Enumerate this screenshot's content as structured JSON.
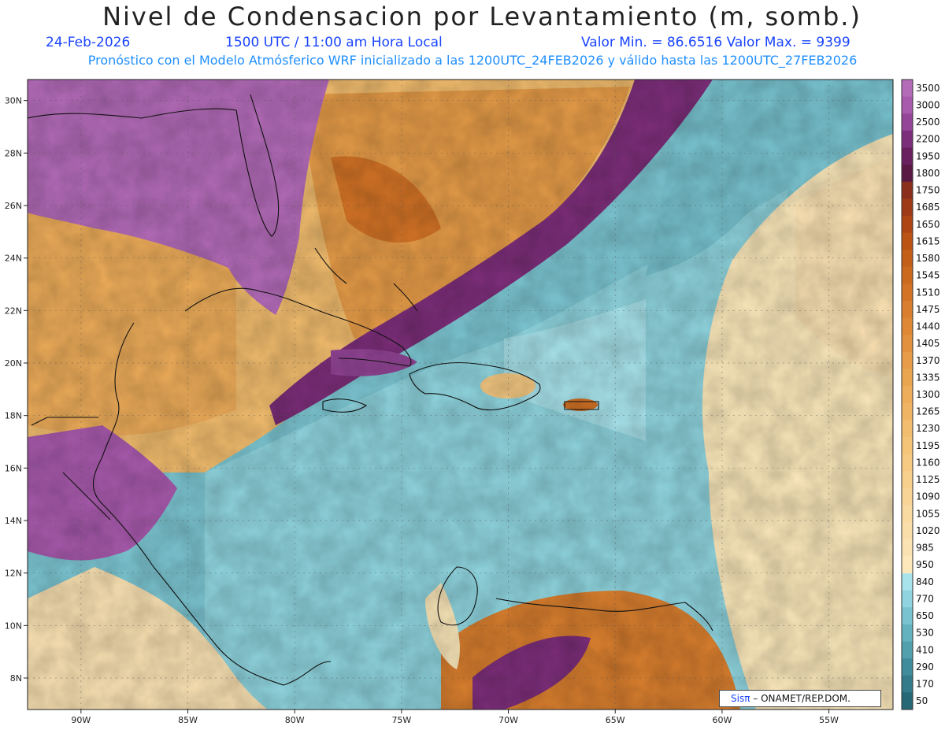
{
  "header": {
    "title": "Nivel de Condensacion por Levantamiento (m, somb.)",
    "date": "24-Feb-2026",
    "time": "1500 UTC / 11:00 am Hora Local",
    "minmax": "Valor Min. = 86.6516  Valor Max. = 9399",
    "subtitle": "Pronóstico con el Modelo Atmósferico WRF inicializado a las 1200UTC_24FEB2026 y válido hasta las  1200UTC_27FEB2026"
  },
  "map": {
    "lon_range": [
      -92.5,
      -52.0
    ],
    "lat_range": [
      6.8,
      30.8
    ],
    "lon_ticks": [
      "90W",
      "85W",
      "80W",
      "75W",
      "70W",
      "65W",
      "60W",
      "55W"
    ],
    "lat_ticks": [
      "30N",
      "28N",
      "26N",
      "24N",
      "22N",
      "20N",
      "18N",
      "16N",
      "14N",
      "12N",
      "10N",
      "8N"
    ]
  },
  "colorbar": {
    "levels": [
      "3500",
      "3000",
      "2500",
      "2200",
      "1950",
      "1800",
      "1750",
      "1685",
      "1650",
      "1615",
      "1580",
      "1545",
      "1510",
      "1475",
      "1440",
      "1405",
      "1370",
      "1335",
      "1300",
      "1265",
      "1230",
      "1195",
      "1160",
      "1125",
      "1090",
      "1055",
      "1020",
      "985",
      "950",
      "840",
      "770",
      "650",
      "530",
      "410",
      "290",
      "170",
      "50"
    ],
    "colors": [
      "#b36bb8",
      "#a85aad",
      "#944597",
      "#7d2e7a",
      "#6a1f5e",
      "#5a1845",
      "#8a2f1e",
      "#9e3a17",
      "#ad4614",
      "#ba5313",
      "#c35e18",
      "#cb691e",
      "#d37326",
      "#d87e2e",
      "#de8836",
      "#e2923f",
      "#e69c48",
      "#eaa551",
      "#eead5a",
      "#f0b564",
      "#f2bd6e",
      "#f4c479",
      "#f6ca83",
      "#f7d08d",
      "#f8d597",
      "#f9daa1",
      "#fadeaa",
      "#fbe2b3",
      "#fce8bb",
      "#a8e3ec",
      "#8fd4de",
      "#78c3cf",
      "#64b1bf",
      "#529fae",
      "#418c9c",
      "#337a8a",
      "#266876"
    ]
  },
  "credit": {
    "brand": "Sisπ",
    "org": "– ONAMET/REP.DOM."
  }
}
